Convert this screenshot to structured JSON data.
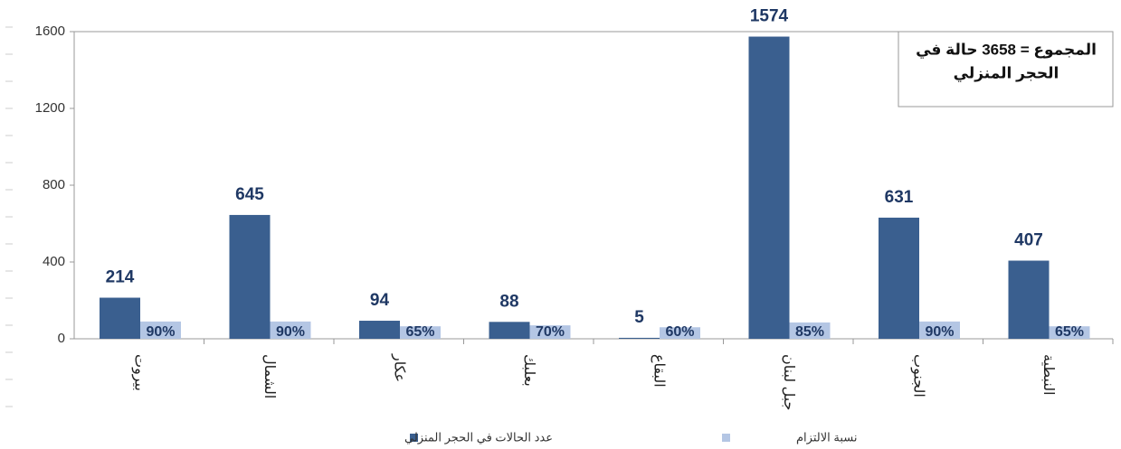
{
  "chart_data": {
    "type": "bar",
    "categories": [
      "بيروت",
      "الشمال",
      "عكار",
      "بعلبك",
      "البقاع",
      "جبل لبنان",
      "الجنوب",
      "النبطية"
    ],
    "series": [
      {
        "name": "عدد الحالات في الحجر المنزلي",
        "color": "#3a5f8f",
        "values": [
          214,
          645,
          94,
          88,
          5,
          1574,
          631,
          407
        ]
      },
      {
        "name": "نسبة الالتزام",
        "color": "#b4c6e4",
        "values": [
          90,
          90,
          65,
          70,
          60,
          85,
          90,
          65
        ],
        "value_labels": [
          "90%",
          "90%",
          "65%",
          "70%",
          "60%",
          "85%",
          "90%",
          "65%"
        ]
      }
    ],
    "annotation": [
      "المجموع = 3658 حالة في",
      "الحجر المنزلي"
    ],
    "ylim": [
      0,
      1600
    ],
    "yticks": [
      0,
      400,
      800,
      1200,
      1600
    ],
    "grid": false
  }
}
